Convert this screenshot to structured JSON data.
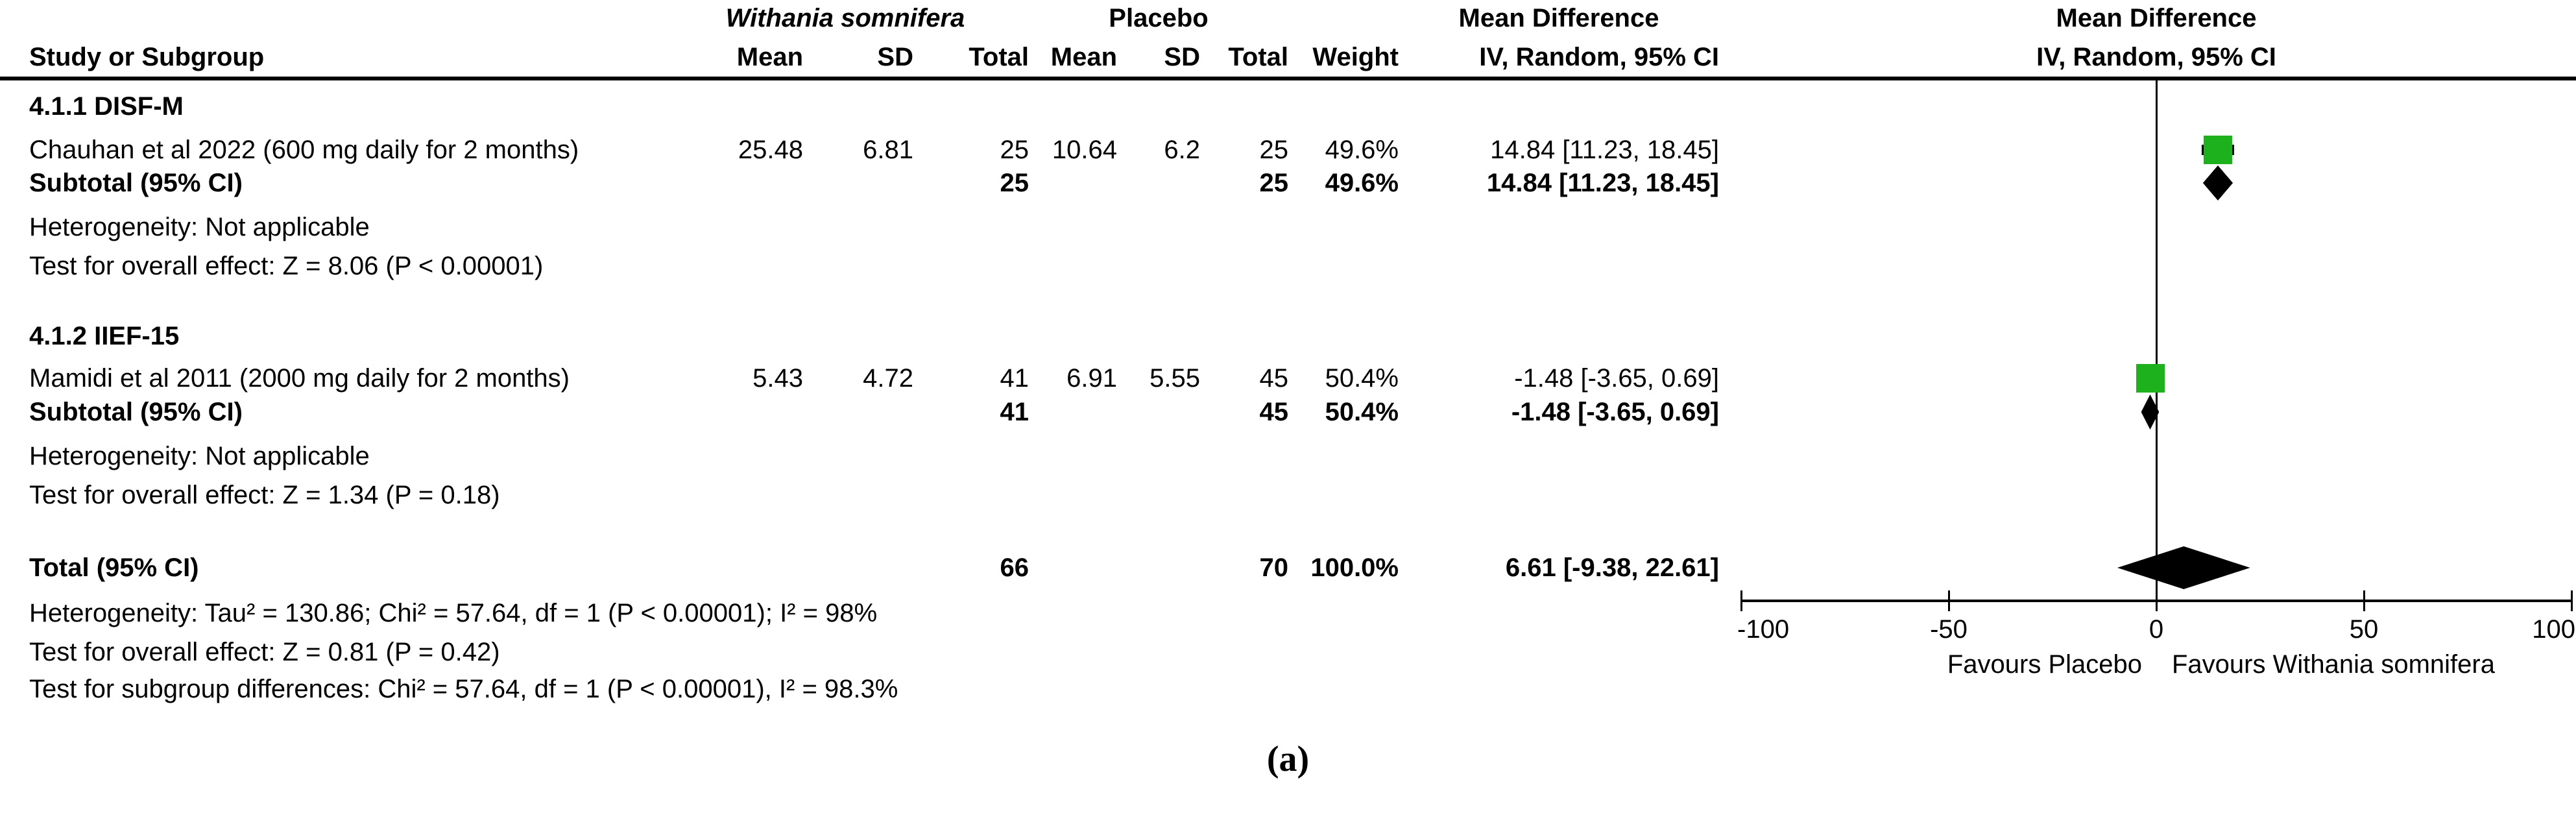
{
  "header": {
    "study_col": "Study or Subgroup",
    "treatment_group": "Withania somnifera",
    "control_group": "Placebo",
    "mean": "Mean",
    "sd": "SD",
    "total": "Total",
    "weight": "Weight",
    "md_header": "Mean Difference",
    "md_subheader": "IV, Random, 95% CI",
    "plot_header": "Mean Difference",
    "plot_subheader": "IV, Random, 95% CI"
  },
  "subgroup1": {
    "title": "4.1.1 DISF-M",
    "study": {
      "label": "Chauhan et al 2022 (600 mg daily for 2 months)",
      "mean": "25.48",
      "sd": "6.81",
      "total": "25",
      "c_mean": "10.64",
      "c_sd": "6.2",
      "c_total": "25",
      "weight": "49.6%",
      "md_ci": "14.84 [11.23, 18.45]"
    },
    "subtotal": {
      "label": "Subtotal (95% CI)",
      "total": "25",
      "c_total": "25",
      "weight": "49.6%",
      "md_ci": "14.84 [11.23, 18.45]"
    },
    "heterogeneity": "Heterogeneity: Not applicable",
    "overall_effect": "Test for overall effect: Z = 8.06 (P < 0.00001)"
  },
  "subgroup2": {
    "title": "4.1.2 IIEF-15",
    "study": {
      "label": "Mamidi et al 2011 (2000 mg daily for 2 months)",
      "mean": "5.43",
      "sd": "4.72",
      "total": "41",
      "c_mean": "6.91",
      "c_sd": "5.55",
      "c_total": "45",
      "weight": "50.4%",
      "md_ci": "-1.48 [-3.65, 0.69]"
    },
    "subtotal": {
      "label": "Subtotal (95% CI)",
      "total": "41",
      "c_total": "45",
      "weight": "50.4%",
      "md_ci": "-1.48 [-3.65, 0.69]"
    },
    "heterogeneity": "Heterogeneity: Not applicable",
    "overall_effect": "Test for overall effect: Z = 1.34 (P = 0.18)"
  },
  "totals": {
    "label": "Total (95% CI)",
    "total": "66",
    "c_total": "70",
    "weight": "100.0%",
    "md_ci": "6.61 [-9.38, 22.61]",
    "heterogeneity": "Heterogeneity: Tau² = 130.86; Chi² = 57.64, df = 1 (P < 0.00001); I² = 98%",
    "overall_effect": "Test for overall effect: Z = 0.81 (P = 0.42)",
    "subgroup_diff": "Test for subgroup differences: Chi² = 57.64, df = 1 (P < 0.00001), I² = 98.3%"
  },
  "axis": {
    "tick_labels": [
      "-100",
      "-50",
      "0",
      "50",
      "100"
    ],
    "favours_left": "Favours Placebo",
    "favours_right": "Favours Withania somnifera"
  },
  "caption": "(a)",
  "colors": {
    "marker_green": "#1DB21D",
    "ink": "#000000"
  },
  "chart_data": {
    "type": "forest",
    "effect_measure": "Mean Difference, IV, Random, 95% CI",
    "x_range": [
      -100,
      100
    ],
    "x_ticks": [
      -100,
      -50,
      0,
      50,
      100
    ],
    "zero_line": 0,
    "favours": {
      "left": "Favours Placebo",
      "right": "Favours Withania somnifera"
    },
    "subgroups": [
      {
        "name": "4.1.1 DISF-M",
        "studies": [
          {
            "label": "Chauhan et al 2022 (600 mg daily for 2 months)",
            "t_mean": 25.48,
            "t_sd": 6.81,
            "t_n": 25,
            "c_mean": 10.64,
            "c_sd": 6.2,
            "c_n": 25,
            "weight_pct": 49.6,
            "md": 14.84,
            "ci": [
              11.23,
              18.45
            ]
          }
        ],
        "subtotal": {
          "t_n": 25,
          "c_n": 25,
          "weight_pct": 49.6,
          "md": 14.84,
          "ci": [
            11.23,
            18.45
          ]
        },
        "heterogeneity": "Not applicable",
        "overall_effect": "Z = 8.06 (P < 0.00001)"
      },
      {
        "name": "4.1.2 IIEF-15",
        "studies": [
          {
            "label": "Mamidi et al 2011 (2000 mg daily for 2 months)",
            "t_mean": 5.43,
            "t_sd": 4.72,
            "t_n": 41,
            "c_mean": 6.91,
            "c_sd": 5.55,
            "c_n": 45,
            "weight_pct": 50.4,
            "md": -1.48,
            "ci": [
              -3.65,
              0.69
            ]
          }
        ],
        "subtotal": {
          "t_n": 41,
          "c_n": 45,
          "weight_pct": 50.4,
          "md": -1.48,
          "ci": [
            -3.65,
            0.69
          ]
        },
        "heterogeneity": "Not applicable",
        "overall_effect": "Z = 1.34 (P = 0.18)"
      }
    ],
    "total": {
      "t_n": 66,
      "c_n": 70,
      "weight_pct": 100.0,
      "md": 6.61,
      "ci": [
        -9.38,
        22.61
      ],
      "tau2": 130.86,
      "chi2": 57.64,
      "df": 1,
      "p": "P < 0.00001",
      "i2": "98%"
    },
    "subgroup_differences": {
      "chi2": 57.64,
      "df": 1,
      "p": "P < 0.00001",
      "i2": "98.3%"
    }
  }
}
